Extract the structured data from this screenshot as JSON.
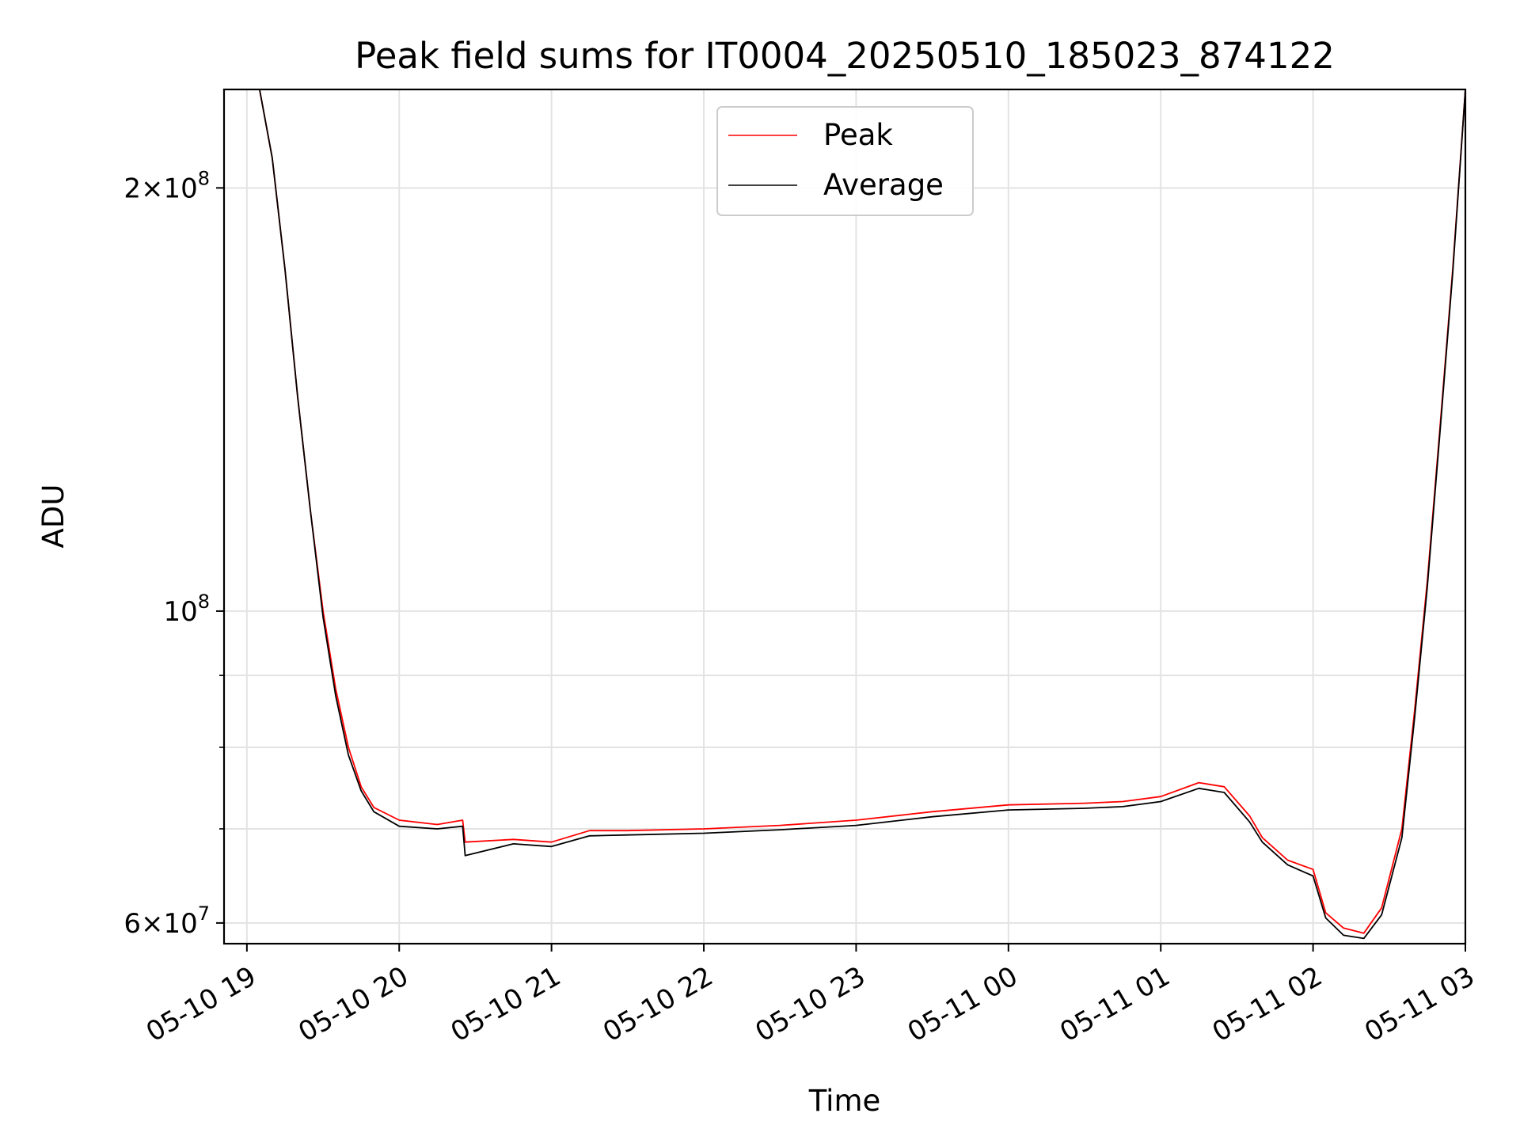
{
  "chart_data": {
    "type": "line",
    "title": "Peak field sums for IT0004_20250510_185023_874122",
    "xlabel": "Time",
    "ylabel": "ADU",
    "yscale": "log",
    "xlim": [
      "2025-05-10T18:51",
      "2025-05-11T03:00"
    ],
    "ylim": [
      58000000,
      235000000
    ],
    "x_ticks": [
      "05-10 19",
      "05-10 20",
      "05-10 21",
      "05-10 22",
      "05-10 23",
      "05-11 00",
      "05-11 01",
      "05-11 02",
      "05-11 03"
    ],
    "x_tick_times": [
      "2025-05-10T19:00",
      "2025-05-10T20:00",
      "2025-05-10T21:00",
      "2025-05-10T22:00",
      "2025-05-10T23:00",
      "2025-05-11T00:00",
      "2025-05-11T01:00",
      "2025-05-11T02:00",
      "2025-05-11T03:00"
    ],
    "y_ticks": [
      {
        "value": 60000000,
        "mantissa": "6",
        "exp": "7"
      },
      {
        "value": 100000000,
        "mantissa": "",
        "exp": "8"
      },
      {
        "value": 200000000,
        "mantissa": "2",
        "exp": "8"
      }
    ],
    "y_minor_ticks": [
      70000000,
      80000000,
      90000000
    ],
    "grid": true,
    "legend_position": "upper-center",
    "series": [
      {
        "name": "Peak",
        "color": "#ff0000",
        "points": [
          [
            "2025-05-10T19:05",
            235000000
          ],
          [
            "2025-05-10T19:10",
            210000000
          ],
          [
            "2025-05-10T19:15",
            175000000
          ],
          [
            "2025-05-10T19:20",
            142000000
          ],
          [
            "2025-05-10T19:25",
            118000000
          ],
          [
            "2025-05-10T19:30",
            100000000
          ],
          [
            "2025-05-10T19:35",
            88000000
          ],
          [
            "2025-05-10T19:40",
            80000000
          ],
          [
            "2025-05-10T19:45",
            75000000
          ],
          [
            "2025-05-10T19:50",
            72500000
          ],
          [
            "2025-05-10T20:00",
            71000000
          ],
          [
            "2025-05-10T20:15",
            70500000
          ],
          [
            "2025-05-10T20:25",
            71000000
          ],
          [
            "2025-05-10T20:26",
            68500000
          ],
          [
            "2025-05-10T20:45",
            68800000
          ],
          [
            "2025-05-10T21:00",
            68500000
          ],
          [
            "2025-05-10T21:15",
            69800000
          ],
          [
            "2025-05-10T21:30",
            69800000
          ],
          [
            "2025-05-10T22:00",
            70000000
          ],
          [
            "2025-05-10T22:30",
            70400000
          ],
          [
            "2025-05-10T23:00",
            71000000
          ],
          [
            "2025-05-10T23:30",
            72000000
          ],
          [
            "2025-05-11T00:00",
            72800000
          ],
          [
            "2025-05-11T00:30",
            73000000
          ],
          [
            "2025-05-11T00:45",
            73200000
          ],
          [
            "2025-05-11T01:00",
            73800000
          ],
          [
            "2025-05-11T01:15",
            75500000
          ],
          [
            "2025-05-11T01:25",
            75000000
          ],
          [
            "2025-05-11T01:35",
            71500000
          ],
          [
            "2025-05-11T01:40",
            69000000
          ],
          [
            "2025-05-11T01:50",
            66500000
          ],
          [
            "2025-05-11T02:00",
            65500000
          ],
          [
            "2025-05-11T02:05",
            61000000
          ],
          [
            "2025-05-11T02:12",
            59500000
          ],
          [
            "2025-05-11T02:20",
            59000000
          ],
          [
            "2025-05-11T02:27",
            61500000
          ],
          [
            "2025-05-11T02:35",
            70000000
          ],
          [
            "2025-05-11T02:40",
            85000000
          ],
          [
            "2025-05-11T02:45",
            105000000
          ],
          [
            "2025-05-11T02:50",
            135000000
          ],
          [
            "2025-05-11T02:55",
            175000000
          ],
          [
            "2025-05-11T03:00",
            235000000
          ]
        ]
      },
      {
        "name": "Average",
        "color": "#000000",
        "points": [
          [
            "2025-05-10T19:05",
            235000000
          ],
          [
            "2025-05-10T19:10",
            210000000
          ],
          [
            "2025-05-10T19:15",
            175000000
          ],
          [
            "2025-05-10T19:20",
            142000000
          ],
          [
            "2025-05-10T19:25",
            118000000
          ],
          [
            "2025-05-10T19:30",
            99000000
          ],
          [
            "2025-05-10T19:35",
            87000000
          ],
          [
            "2025-05-10T19:40",
            79000000
          ],
          [
            "2025-05-10T19:45",
            74500000
          ],
          [
            "2025-05-10T19:50",
            72000000
          ],
          [
            "2025-05-10T20:00",
            70300000
          ],
          [
            "2025-05-10T20:15",
            70000000
          ],
          [
            "2025-05-10T20:25",
            70300000
          ],
          [
            "2025-05-10T20:26",
            67000000
          ],
          [
            "2025-05-10T20:45",
            68300000
          ],
          [
            "2025-05-10T21:00",
            68000000
          ],
          [
            "2025-05-10T21:15",
            69200000
          ],
          [
            "2025-05-10T21:30",
            69300000
          ],
          [
            "2025-05-10T22:00",
            69500000
          ],
          [
            "2025-05-10T22:30",
            69900000
          ],
          [
            "2025-05-10T23:00",
            70400000
          ],
          [
            "2025-05-10T23:30",
            71400000
          ],
          [
            "2025-05-11T00:00",
            72200000
          ],
          [
            "2025-05-11T00:30",
            72400000
          ],
          [
            "2025-05-11T00:45",
            72600000
          ],
          [
            "2025-05-11T01:00",
            73200000
          ],
          [
            "2025-05-11T01:15",
            74800000
          ],
          [
            "2025-05-11T01:25",
            74300000
          ],
          [
            "2025-05-11T01:35",
            70800000
          ],
          [
            "2025-05-11T01:40",
            68500000
          ],
          [
            "2025-05-11T01:50",
            66000000
          ],
          [
            "2025-05-11T02:00",
            64800000
          ],
          [
            "2025-05-11T02:05",
            60500000
          ],
          [
            "2025-05-11T02:12",
            58800000
          ],
          [
            "2025-05-11T02:20",
            58500000
          ],
          [
            "2025-05-11T02:27",
            60800000
          ],
          [
            "2025-05-11T02:35",
            69000000
          ],
          [
            "2025-05-11T02:40",
            84000000
          ],
          [
            "2025-05-11T02:45",
            104000000
          ],
          [
            "2025-05-11T02:50",
            134000000
          ],
          [
            "2025-05-11T02:55",
            174000000
          ],
          [
            "2025-05-11T03:00",
            235000000
          ]
        ]
      }
    ]
  }
}
